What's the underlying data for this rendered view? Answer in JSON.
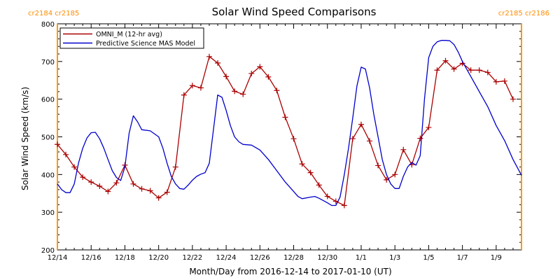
{
  "chart_data": {
    "type": "line",
    "title": "Solar Wind Speed Comparisons",
    "xlabel": "Month/Day from 2016-12-14 to 2017-01-10 (UT)",
    "ylabel": "Solar Wind Speed (km/s)",
    "ylim": [
      200,
      800
    ],
    "xlim": [
      "2016-12-14 00:00",
      "2017-01-10 12:00"
    ],
    "y_ticks": [
      200,
      300,
      400,
      500,
      600,
      700,
      800
    ],
    "x_tick_labels": [
      "12/14",
      "12/16",
      "12/18",
      "12/20",
      "12/22",
      "12/24",
      "12/26",
      "12/28",
      "12/30",
      "1/1",
      "1/3",
      "1/5",
      "1/7",
      "1/9"
    ],
    "grid": false,
    "legend_position": "top-left",
    "carrington": [
      {
        "label": "cr2184 cr2185",
        "x": "2016-12-14 00:00",
        "side": "left"
      },
      {
        "label": "cr2185 cr2186",
        "x": "2017-01-10 12:00",
        "side": "right"
      }
    ],
    "colors": {
      "omni": "#aa0000",
      "model": "#0000cc",
      "boundary": "#ff9900",
      "cr_label": "#ff8c00"
    },
    "series": [
      {
        "name": "OMNI_M (12-hr avg)",
        "color": "#aa0000",
        "marker": "plus",
        "points": [
          [
            "2016-12-14 00:00",
            480
          ],
          [
            "2016-12-14 12:00",
            453
          ],
          [
            "2016-12-15 00:00",
            420
          ],
          [
            "2016-12-15 12:00",
            393
          ],
          [
            "2016-12-16 00:00",
            380
          ],
          [
            "2016-12-16 12:00",
            369
          ],
          [
            "2016-12-17 00:00",
            355
          ],
          [
            "2016-12-17 12:00",
            378
          ],
          [
            "2016-12-18 00:00",
            425
          ],
          [
            "2016-12-18 12:00",
            375
          ],
          [
            "2016-12-19 00:00",
            362
          ],
          [
            "2016-12-19 12:00",
            357
          ],
          [
            "2016-12-20 00:00",
            338
          ],
          [
            "2016-12-20 12:00",
            353
          ],
          [
            "2016-12-21 00:00",
            420
          ],
          [
            "2016-12-21 12:00",
            611
          ],
          [
            "2016-12-22 00:00",
            636
          ],
          [
            "2016-12-22 12:00",
            630
          ],
          [
            "2016-12-23 00:00",
            713
          ],
          [
            "2016-12-23 12:00",
            696
          ],
          [
            "2016-12-24 00:00",
            660
          ],
          [
            "2016-12-24 12:00",
            621
          ],
          [
            "2016-12-25 00:00",
            613
          ],
          [
            "2016-12-25 12:00",
            668
          ],
          [
            "2016-12-26 00:00",
            686
          ],
          [
            "2016-12-26 12:00",
            659
          ],
          [
            "2016-12-27 00:00",
            623
          ],
          [
            "2016-12-27 12:00",
            552
          ],
          [
            "2016-12-28 00:00",
            495
          ],
          [
            "2016-12-28 12:00",
            428
          ],
          [
            "2016-12-29 00:00",
            405
          ],
          [
            "2016-12-29 12:00",
            372
          ],
          [
            "2016-12-30 00:00",
            342
          ],
          [
            "2016-12-30 12:00",
            329
          ],
          [
            "2016-12-31 00:00",
            318
          ],
          [
            "2016-12-31 12:00",
            495
          ],
          [
            "2017-01-01 00:00",
            533
          ],
          [
            "2017-01-01 12:00",
            489
          ],
          [
            "2017-01-02 00:00",
            424
          ],
          [
            "2017-01-02 12:00",
            386
          ],
          [
            "2017-01-03 00:00",
            400
          ],
          [
            "2017-01-03 12:00",
            466
          ],
          [
            "2017-01-04 00:00",
            426
          ],
          [
            "2017-01-04 12:00",
            496
          ],
          [
            "2017-01-05 00:00",
            525
          ],
          [
            "2017-01-05 12:00",
            677
          ],
          [
            "2017-01-06 00:00",
            702
          ],
          [
            "2017-01-06 12:00",
            680
          ],
          [
            "2017-01-07 00:00",
            695
          ],
          [
            "2017-01-07 12:00",
            677
          ],
          [
            "2017-01-08 00:00",
            677
          ],
          [
            "2017-01-08 12:00",
            671
          ],
          [
            "2017-01-09 00:00",
            646
          ],
          [
            "2017-01-09 12:00",
            648
          ],
          [
            "2017-01-10 00:00",
            600
          ]
        ]
      },
      {
        "name": "Predictive Science MAS Model",
        "color": "#0000cc",
        "marker": "none",
        "points": [
          [
            "2016-12-14 00:00",
            375
          ],
          [
            "2016-12-14 06:00",
            360
          ],
          [
            "2016-12-14 12:00",
            352
          ],
          [
            "2016-12-14 18:00",
            352
          ],
          [
            "2016-12-15 00:00",
            375
          ],
          [
            "2016-12-15 06:00",
            430
          ],
          [
            "2016-12-15 12:00",
            470
          ],
          [
            "2016-12-15 18:00",
            497
          ],
          [
            "2016-12-16 00:00",
            511
          ],
          [
            "2016-12-16 06:00",
            512
          ],
          [
            "2016-12-16 12:00",
            495
          ],
          [
            "2016-12-16 18:00",
            470
          ],
          [
            "2016-12-17 00:00",
            440
          ],
          [
            "2016-12-17 06:00",
            410
          ],
          [
            "2016-12-17 12:00",
            392
          ],
          [
            "2016-12-17 18:00",
            384
          ],
          [
            "2016-12-18 00:00",
            420
          ],
          [
            "2016-12-18 06:00",
            510
          ],
          [
            "2016-12-18 12:00",
            556
          ],
          [
            "2016-12-18 18:00",
            540
          ],
          [
            "2016-12-19 00:00",
            519
          ],
          [
            "2016-12-19 12:00",
            516
          ],
          [
            "2016-12-20 00:00",
            500
          ],
          [
            "2016-12-20 06:00",
            470
          ],
          [
            "2016-12-20 12:00",
            430
          ],
          [
            "2016-12-20 18:00",
            395
          ],
          [
            "2016-12-21 00:00",
            375
          ],
          [
            "2016-12-21 06:00",
            363
          ],
          [
            "2016-12-21 12:00",
            361
          ],
          [
            "2016-12-21 18:00",
            372
          ],
          [
            "2016-12-22 00:00",
            385
          ],
          [
            "2016-12-22 06:00",
            395
          ],
          [
            "2016-12-22 12:00",
            401
          ],
          [
            "2016-12-22 18:00",
            405
          ],
          [
            "2016-12-23 00:00",
            430
          ],
          [
            "2016-12-23 06:00",
            520
          ],
          [
            "2016-12-23 12:00",
            611
          ],
          [
            "2016-12-23 18:00",
            605
          ],
          [
            "2016-12-24 00:00",
            570
          ],
          [
            "2016-12-24 06:00",
            530
          ],
          [
            "2016-12-24 12:00",
            500
          ],
          [
            "2016-12-24 18:00",
            487
          ],
          [
            "2016-12-25 00:00",
            480
          ],
          [
            "2016-12-25 12:00",
            478
          ],
          [
            "2016-12-26 00:00",
            465
          ],
          [
            "2016-12-26 12:00",
            440
          ],
          [
            "2016-12-27 00:00",
            410
          ],
          [
            "2016-12-27 12:00",
            380
          ],
          [
            "2016-12-28 00:00",
            355
          ],
          [
            "2016-12-28 06:00",
            342
          ],
          [
            "2016-12-28 12:00",
            336
          ],
          [
            "2016-12-29 00:00",
            340
          ],
          [
            "2016-12-29 06:00",
            342
          ],
          [
            "2016-12-29 12:00",
            337
          ],
          [
            "2016-12-30 00:00",
            325
          ],
          [
            "2016-12-30 06:00",
            318
          ],
          [
            "2016-12-30 12:00",
            318
          ],
          [
            "2016-12-30 18:00",
            340
          ],
          [
            "2016-12-31 00:00",
            400
          ],
          [
            "2016-12-31 06:00",
            470
          ],
          [
            "2016-12-31 12:00",
            550
          ],
          [
            "2016-12-31 18:00",
            635
          ],
          [
            "2017-01-01 00:00",
            685
          ],
          [
            "2017-01-01 06:00",
            680
          ],
          [
            "2017-01-01 12:00",
            630
          ],
          [
            "2017-01-01 18:00",
            560
          ],
          [
            "2017-01-02 00:00",
            500
          ],
          [
            "2017-01-02 06:00",
            440
          ],
          [
            "2017-01-02 12:00",
            400
          ],
          [
            "2017-01-02 18:00",
            375
          ],
          [
            "2017-01-03 00:00",
            363
          ],
          [
            "2017-01-03 06:00",
            363
          ],
          [
            "2017-01-03 12:00",
            395
          ],
          [
            "2017-01-03 18:00",
            420
          ],
          [
            "2017-01-04 00:00",
            432
          ],
          [
            "2017-01-04 06:00",
            425
          ],
          [
            "2017-01-04 12:00",
            450
          ],
          [
            "2017-01-04 18:00",
            600
          ],
          [
            "2017-01-05 00:00",
            710
          ],
          [
            "2017-01-05 06:00",
            740
          ],
          [
            "2017-01-05 12:00",
            752
          ],
          [
            "2017-01-05 18:00",
            756
          ],
          [
            "2017-01-06 00:00",
            756
          ],
          [
            "2017-01-06 06:00",
            755
          ],
          [
            "2017-01-06 12:00",
            745
          ],
          [
            "2017-01-06 18:00",
            725
          ],
          [
            "2017-01-07 00:00",
            700
          ],
          [
            "2017-01-07 12:00",
            660
          ],
          [
            "2017-01-08 00:00",
            620
          ],
          [
            "2017-01-08 12:00",
            580
          ],
          [
            "2017-01-09 00:00",
            530
          ],
          [
            "2017-01-09 12:00",
            490
          ],
          [
            "2017-01-10 00:00",
            440
          ],
          [
            "2017-01-10 12:00",
            398
          ]
        ]
      }
    ]
  }
}
